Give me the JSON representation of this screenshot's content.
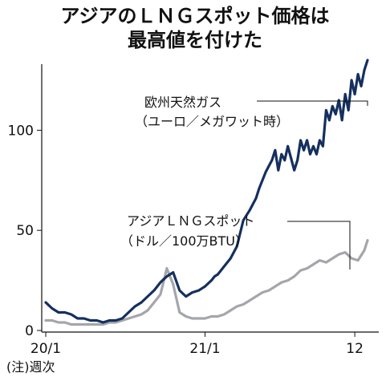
{
  "chart_data": {
    "type": "line",
    "title_lines": [
      "アジアのＬＮＧスポット価格は",
      "最高値を付けた"
    ],
    "x_tick_labels": [
      "20/1",
      "21/1",
      "12"
    ],
    "yticks": [
      0,
      50,
      100
    ],
    "ylim": [
      0,
      135
    ],
    "grid": false,
    "note": "(注)週次",
    "series": [
      {
        "label_lines": [
          "欧州天然ガス",
          "（ユーロ／メガワット時）"
        ],
        "color": "#15305e",
        "x": [
          0,
          2,
          4,
          6,
          8,
          10,
          12,
          14,
          16,
          18,
          20,
          22,
          24,
          26,
          28,
          30,
          32,
          34,
          36,
          38,
          40,
          42,
          44,
          46,
          48,
          50,
          52,
          53,
          54,
          56,
          58,
          60,
          62,
          64,
          66,
          67,
          68,
          69,
          70,
          71,
          72,
          73,
          74,
          75,
          76,
          77,
          78,
          79,
          80,
          81,
          82,
          83,
          84,
          85,
          86,
          87,
          88,
          89,
          90,
          91,
          92,
          93,
          94,
          95,
          96,
          97,
          98,
          99,
          100,
          101
        ],
        "values": [
          14,
          11,
          9,
          9,
          8,
          6,
          6,
          5,
          5,
          4,
          5,
          5,
          6,
          9,
          12,
          14,
          17,
          20,
          24,
          27,
          29,
          20,
          17,
          19,
          20,
          22,
          25,
          27,
          28,
          32,
          36,
          42,
          55,
          60,
          66,
          71,
          75,
          79,
          82,
          85,
          90,
          80,
          88,
          85,
          92,
          86,
          80,
          85,
          95,
          90,
          95,
          88,
          92,
          88,
          95,
          92,
          110,
          105,
          112,
          108,
          115,
          105,
          118,
          110,
          125,
          118,
          128,
          122,
          130,
          135
        ]
      },
      {
        "label_lines": [
          "アジアＬＮＧスポット",
          "（ドル／100万BTU）"
        ],
        "color": "#a4a6ab",
        "x": [
          0,
          2,
          4,
          6,
          8,
          10,
          12,
          14,
          16,
          18,
          20,
          22,
          24,
          26,
          28,
          30,
          32,
          34,
          36,
          38,
          40,
          42,
          44,
          46,
          48,
          50,
          52,
          54,
          56,
          58,
          60,
          62,
          64,
          66,
          68,
          70,
          72,
          74,
          76,
          78,
          80,
          82,
          84,
          86,
          88,
          90,
          92,
          94,
          96,
          98,
          100,
          101
        ],
        "values": [
          5,
          5,
          4,
          4,
          3,
          3,
          3,
          3,
          3,
          3,
          4,
          4,
          5,
          6,
          7,
          8,
          10,
          14,
          18,
          31,
          23,
          9,
          7,
          6,
          6,
          6,
          7,
          7,
          8,
          10,
          12,
          13,
          15,
          17,
          19,
          20,
          22,
          24,
          25,
          27,
          30,
          31,
          33,
          35,
          34,
          36,
          38,
          39,
          36,
          35,
          40,
          45
        ]
      }
    ]
  }
}
